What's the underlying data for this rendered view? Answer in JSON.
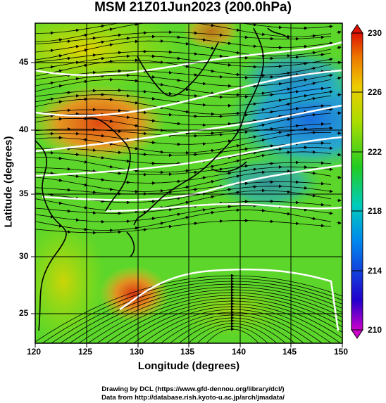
{
  "title": "MSM 21Z01Jun2023 (200.0hPa)",
  "xaxis": {
    "label": "Longitude (degrees)",
    "ticks": [
      "120",
      "125",
      "130",
      "135",
      "140",
      "145",
      "150"
    ],
    "range": [
      120,
      150
    ]
  },
  "yaxis": {
    "label": "Latitude  (degrees)",
    "ticks": [
      "25",
      "30",
      "35",
      "40",
      "45"
    ],
    "range": [
      22.4,
      47.6
    ]
  },
  "colorbar": {
    "ticks": [
      "230",
      "226",
      "222",
      "218",
      "214",
      "210"
    ],
    "min": 210,
    "max": 230
  },
  "credits": {
    "line1": "Drawing by DCL (https://www.gfd-dennou.org/library/dcl/)",
    "line2": "Data from http://database.rish.kyoto-u.ac.jp/arch/jmadata/"
  },
  "colors": {
    "hot": "#e04000",
    "warm": "#f0b800",
    "mid": "#9ce000",
    "green": "#22cc22",
    "cold": "#1f7fe0"
  }
}
